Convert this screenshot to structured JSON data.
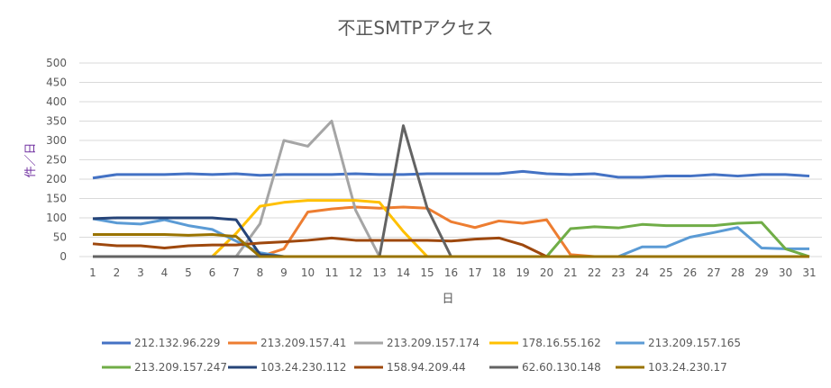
{
  "chart_data": {
    "type": "line",
    "title": "不正SMTPアクセス",
    "xlabel": "日",
    "ylabel": "件／日",
    "ylim": [
      0,
      500
    ],
    "yticks": [
      0,
      50,
      100,
      150,
      200,
      250,
      300,
      350,
      400,
      450,
      500
    ],
    "grid": true,
    "legend": "bottom",
    "x": [
      1,
      2,
      3,
      4,
      5,
      6,
      7,
      8,
      9,
      10,
      11,
      12,
      13,
      14,
      15,
      16,
      17,
      18,
      19,
      20,
      21,
      22,
      23,
      24,
      25,
      26,
      27,
      28,
      29,
      30,
      31
    ],
    "series": [
      {
        "name": "212.132.96.229",
        "color": "#4472c4",
        "values": [
          203,
          212,
          212,
          212,
          214,
          212,
          214,
          210,
          212,
          212,
          212,
          214,
          212,
          212,
          214,
          214,
          214,
          214,
          220,
          214,
          212,
          214,
          205,
          205,
          208,
          208,
          212,
          208,
          212,
          212,
          208
        ]
      },
      {
        "name": "213.209.157.41",
        "color": "#ed7d31",
        "values": [
          0,
          0,
          0,
          0,
          0,
          0,
          0,
          0,
          20,
          115,
          123,
          128,
          125,
          128,
          125,
          90,
          75,
          92,
          86,
          95,
          5,
          0,
          0,
          0,
          0,
          0,
          0,
          0,
          0,
          0,
          0
        ]
      },
      {
        "name": "213.209.157.174",
        "color": "#a5a5a5",
        "values": [
          0,
          0,
          0,
          0,
          0,
          0,
          0,
          85,
          300,
          285,
          350,
          120,
          0,
          0,
          0,
          0,
          0,
          0,
          0,
          0,
          0,
          0,
          0,
          0,
          0,
          0,
          0,
          0,
          0,
          0,
          0
        ]
      },
      {
        "name": "178.16.55.162",
        "color": "#ffc000",
        "values": [
          0,
          0,
          0,
          0,
          0,
          0,
          60,
          130,
          140,
          145,
          145,
          145,
          140,
          65,
          0,
          0,
          0,
          0,
          0,
          0,
          0,
          0,
          0,
          0,
          0,
          0,
          0,
          0,
          0,
          0,
          0
        ]
      },
      {
        "name": "213.209.157.165",
        "color": "#5b9bd5",
        "values": [
          98,
          87,
          84,
          95,
          80,
          70,
          40,
          10,
          0,
          0,
          0,
          0,
          0,
          0,
          0,
          0,
          0,
          0,
          0,
          0,
          0,
          0,
          0,
          25,
          25,
          50,
          62,
          75,
          22,
          20,
          20
        ]
      },
      {
        "name": "213.209.157.247",
        "color": "#70ad47",
        "values": [
          0,
          0,
          0,
          0,
          0,
          0,
          0,
          0,
          0,
          0,
          0,
          0,
          0,
          0,
          0,
          0,
          0,
          0,
          0,
          0,
          72,
          77,
          74,
          83,
          80,
          80,
          80,
          86,
          88,
          20,
          0
        ]
      },
      {
        "name": "103.24.230.112",
        "color": "#264478",
        "values": [
          98,
          100,
          100,
          100,
          100,
          100,
          95,
          5,
          0,
          0,
          0,
          0,
          0,
          0,
          0,
          0,
          0,
          0,
          0,
          0,
          0,
          0,
          0,
          0,
          0,
          0,
          0,
          0,
          0,
          0,
          0
        ]
      },
      {
        "name": "158.94.209.44",
        "color": "#9e480e",
        "values": [
          33,
          28,
          28,
          22,
          28,
          30,
          30,
          35,
          38,
          42,
          48,
          42,
          42,
          42,
          42,
          40,
          45,
          48,
          30,
          0,
          0,
          0,
          0,
          0,
          0,
          0,
          0,
          0,
          0,
          0,
          0
        ]
      },
      {
        "name": "62.60.130.148",
        "color": "#636363",
        "values": [
          0,
          0,
          0,
          0,
          0,
          0,
          0,
          0,
          0,
          0,
          0,
          0,
          0,
          338,
          125,
          0,
          0,
          0,
          0,
          0,
          0,
          0,
          0,
          0,
          0,
          0,
          0,
          0,
          0,
          0,
          0
        ]
      },
      {
        "name": "103.24.230.17",
        "color": "#997300",
        "values": [
          57,
          57,
          57,
          57,
          55,
          57,
          52,
          0,
          0,
          0,
          0,
          0,
          0,
          0,
          0,
          0,
          0,
          0,
          0,
          0,
          0,
          0,
          0,
          0,
          0,
          0,
          0,
          0,
          0,
          0,
          0
        ]
      }
    ]
  }
}
